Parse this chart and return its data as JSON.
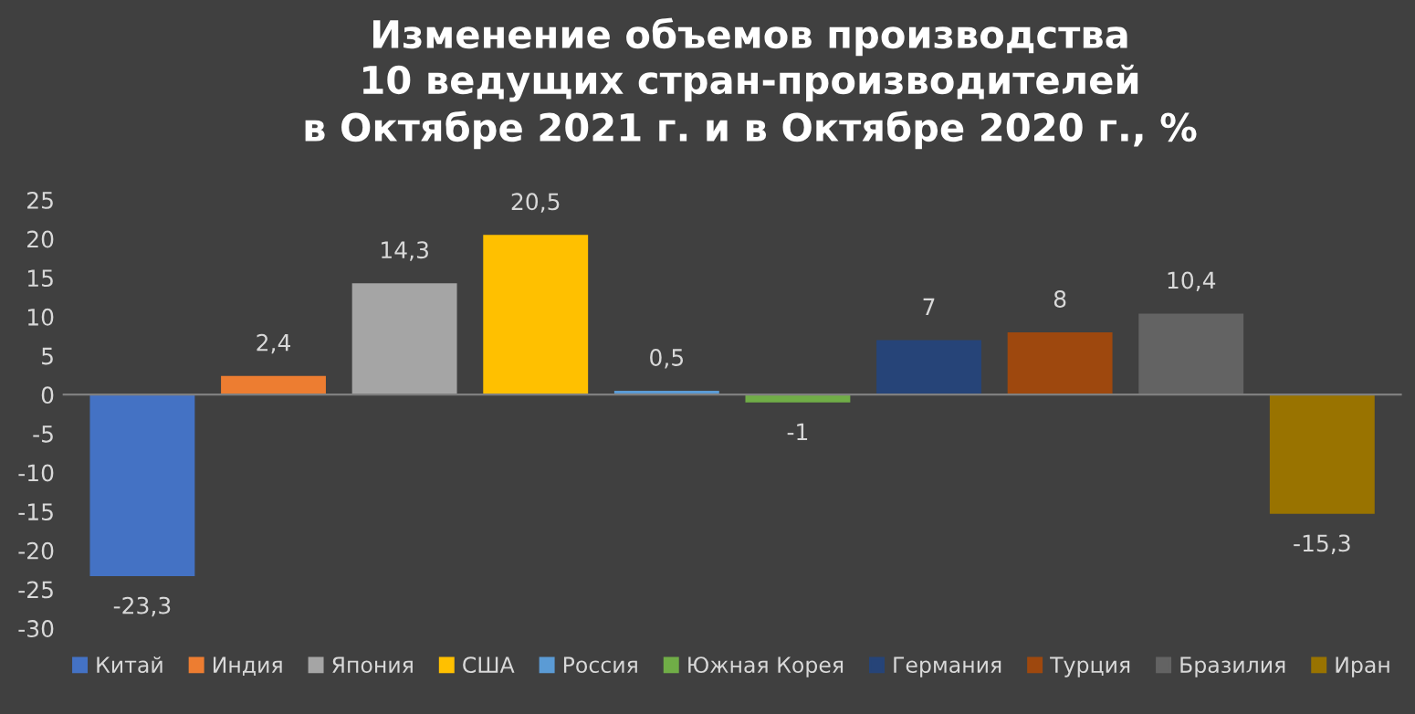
{
  "chart_data": {
    "type": "bar",
    "title": "Изменение объемов производства\n10 ведущих стран-производителей\nв Октябре 2021 г. и в Октябре 2020 г., %",
    "categories": [
      null,
      null,
      null,
      null,
      null,
      null,
      null,
      null,
      null,
      null
    ],
    "series": [
      {
        "name": "Китай",
        "color": "#4472c4",
        "values": [
          -23.3,
          null,
          null,
          null,
          null,
          null,
          null,
          null,
          null,
          null
        ],
        "value_labels": [
          "-23,3",
          null,
          null,
          null,
          null,
          null,
          null,
          null,
          null,
          null
        ]
      },
      {
        "name": "Индия",
        "color": "#ed7d31",
        "values": [
          null,
          2.4,
          null,
          null,
          null,
          null,
          null,
          null,
          null,
          null
        ],
        "value_labels": [
          null,
          "2,4",
          null,
          null,
          null,
          null,
          null,
          null,
          null,
          null
        ]
      },
      {
        "name": "Япония",
        "color": "#a5a5a5",
        "values": [
          null,
          null,
          14.3,
          null,
          null,
          null,
          null,
          null,
          null,
          null
        ],
        "value_labels": [
          null,
          null,
          "14,3",
          null,
          null,
          null,
          null,
          null,
          null,
          null
        ]
      },
      {
        "name": "США",
        "color": "#ffc000",
        "values": [
          null,
          null,
          null,
          20.5,
          null,
          null,
          null,
          null,
          null,
          null
        ],
        "value_labels": [
          null,
          null,
          null,
          "20,5",
          null,
          null,
          null,
          null,
          null,
          null
        ]
      },
      {
        "name": "Россия",
        "color": "#5b9bd5",
        "values": [
          null,
          null,
          null,
          null,
          0.5,
          null,
          null,
          null,
          null,
          null
        ],
        "value_labels": [
          null,
          null,
          null,
          null,
          "0,5",
          null,
          null,
          null,
          null,
          null
        ]
      },
      {
        "name": "Южная Корея",
        "color": "#70ad47",
        "values": [
          null,
          null,
          null,
          null,
          null,
          -1,
          null,
          null,
          null,
          null
        ],
        "value_labels": [
          null,
          null,
          null,
          null,
          null,
          "-1",
          null,
          null,
          null,
          null
        ]
      },
      {
        "name": "Германия",
        "color": "#264478",
        "values": [
          null,
          null,
          null,
          null,
          null,
          null,
          7,
          null,
          null,
          null
        ],
        "value_labels": [
          null,
          null,
          null,
          null,
          null,
          null,
          "7",
          null,
          null,
          null
        ]
      },
      {
        "name": "Турция",
        "color": "#9e480e",
        "values": [
          null,
          null,
          null,
          null,
          null,
          null,
          null,
          8,
          null,
          null
        ],
        "value_labels": [
          null,
          null,
          null,
          null,
          null,
          null,
          null,
          "8",
          null,
          null
        ]
      },
      {
        "name": "Бразилия",
        "color": "#636363",
        "values": [
          null,
          null,
          null,
          null,
          null,
          null,
          null,
          null,
          10.4,
          null
        ],
        "value_labels": [
          null,
          null,
          null,
          null,
          null,
          null,
          null,
          null,
          "10,4",
          null
        ]
      },
      {
        "name": "Иран",
        "color": "#997300",
        "values": [
          null,
          null,
          null,
          null,
          null,
          null,
          null,
          null,
          null,
          -15.3
        ],
        "value_labels": [
          null,
          null,
          null,
          null,
          null,
          null,
          null,
          null,
          null,
          "-15,3"
        ]
      }
    ],
    "ylim": [
      -30,
      25
    ],
    "yticks": [
      -30,
      -25,
      -20,
      -15,
      -10,
      -5,
      0,
      5,
      10,
      15,
      20,
      25
    ],
    "legend": "bottom",
    "tick_labels": "y"
  }
}
